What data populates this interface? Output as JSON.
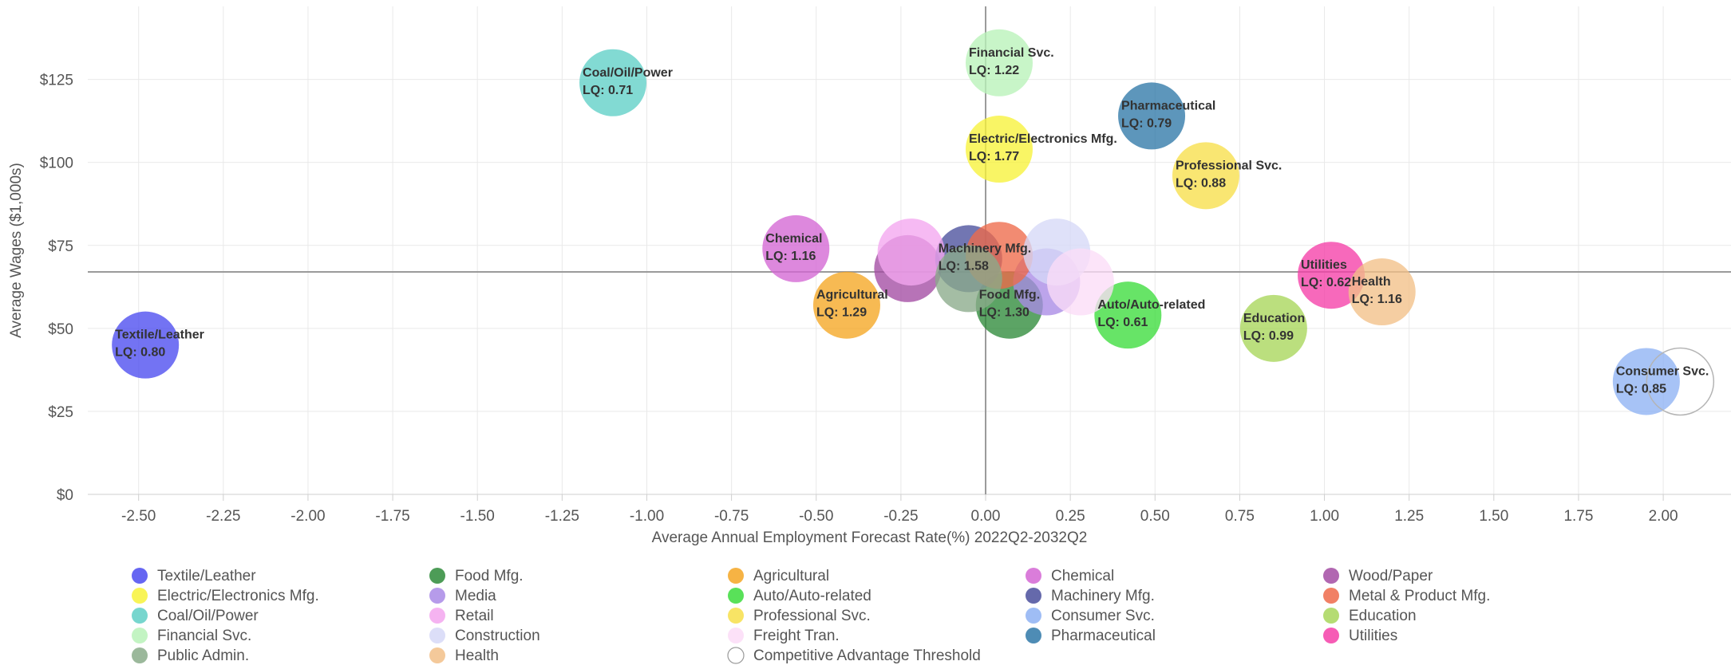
{
  "chart_data": {
    "type": "bubble",
    "xlabel": "Average Annual Employment Forecast Rate(%) 2022Q2-2032Q2",
    "ylabel": "Average Wages ($1,000s)",
    "xlim": [
      -2.65,
      2.2
    ],
    "ylim": [
      0,
      147
    ],
    "x_ticks": [
      "-2.50",
      "-2.25",
      "-2.00",
      "-1.75",
      "-1.50",
      "-1.25",
      "-1.00",
      "-0.75",
      "-0.50",
      "-0.25",
      "0.00",
      "0.25",
      "0.50",
      "0.75",
      "1.00",
      "1.25",
      "1.50",
      "1.75",
      "2.00"
    ],
    "y_ticks": [
      "$0",
      "$25",
      "$50",
      "$75",
      "$100",
      "$125"
    ],
    "grid": true,
    "reference_lines": {
      "x": 0.0,
      "y": 67
    },
    "legend_position": "bottom",
    "series": [
      {
        "name": "Textile/Leather",
        "x": -2.48,
        "y": 45,
        "lq_label": "LQ: 0.80",
        "color": "#4b4bf0"
      },
      {
        "name": "Food Mfg.",
        "x": 0.07,
        "y": 57,
        "lq_label": "LQ: 1.30",
        "color": "#2e8b3a"
      },
      {
        "name": "Agricultural",
        "x": -0.41,
        "y": 57,
        "lq_label": "LQ: 1.29",
        "color": "#f5a623"
      },
      {
        "name": "Chemical",
        "x": -0.56,
        "y": 74,
        "lq_label": "LQ: 1.16",
        "color": "#d466d4"
      },
      {
        "name": "Wood/Paper",
        "x": -0.23,
        "y": 68,
        "lq_label": "",
        "color": "#a34ca3"
      },
      {
        "name": "Electric/Electronics Mfg.",
        "x": 0.04,
        "y": 104,
        "lq_label": "LQ: 1.77",
        "color": "#f7f23a"
      },
      {
        "name": "Media",
        "x": 0.18,
        "y": 64,
        "lq_label": "",
        "color": "#a98ae6"
      },
      {
        "name": "Auto/Auto-related",
        "x": 0.42,
        "y": 54,
        "lq_label": "LQ: 0.61",
        "color": "#3cdc3c"
      },
      {
        "name": "Machinery Mfg.",
        "x": -0.05,
        "y": 71,
        "lq_label": "LQ: 1.58",
        "color": "#4a4f9c"
      },
      {
        "name": "Metal & Product Mfg.",
        "x": 0.04,
        "y": 72,
        "lq_label": "",
        "color": "#ee6a4a"
      },
      {
        "name": "Coal/Oil/Power",
        "x": -1.1,
        "y": 124,
        "lq_label": "LQ: 0.71",
        "color": "#5fcfc6"
      },
      {
        "name": "Retail",
        "x": -0.22,
        "y": 73,
        "lq_label": "",
        "color": "#f3a6ef"
      },
      {
        "name": "Professional Svc.",
        "x": 0.65,
        "y": 96,
        "lq_label": "LQ: 0.88",
        "color": "#f7df4a"
      },
      {
        "name": "Consumer Svc.",
        "x": 1.95,
        "y": 34,
        "lq_label": "LQ: 0.85",
        "color": "#8eb2f3"
      },
      {
        "name": "Education",
        "x": 0.85,
        "y": 50,
        "lq_label": "LQ: 0.99",
        "color": "#a8d65a"
      },
      {
        "name": "Financial Svc.",
        "x": 0.04,
        "y": 130,
        "lq_label": "LQ: 1.22",
        "color": "#b8f2b8"
      },
      {
        "name": "Construction",
        "x": 0.21,
        "y": 73,
        "lq_label": "",
        "color": "#d6d8f7"
      },
      {
        "name": "Freight Tran.",
        "x": 0.28,
        "y": 64,
        "lq_label": "",
        "color": "#fbdcf7"
      },
      {
        "name": "Pharmaceutical",
        "x": 0.49,
        "y": 114,
        "lq_label": "LQ: 0.79",
        "color": "#2f78a8"
      },
      {
        "name": "Utilities",
        "x": 1.02,
        "y": 66,
        "lq_label": "LQ: 0.62",
        "color": "#f53fa8"
      },
      {
        "name": "Public Admin.",
        "x": -0.05,
        "y": 65,
        "lq_label": "",
        "color": "#8aab8a"
      },
      {
        "name": "Health",
        "x": 1.17,
        "y": 61,
        "lq_label": "LQ: 1.16",
        "color": "#f2c088"
      },
      {
        "name": "Competitive Advantage Threshold",
        "x": 2.05,
        "y": 34,
        "lq_label": "",
        "color": "#ffffff"
      }
    ]
  }
}
